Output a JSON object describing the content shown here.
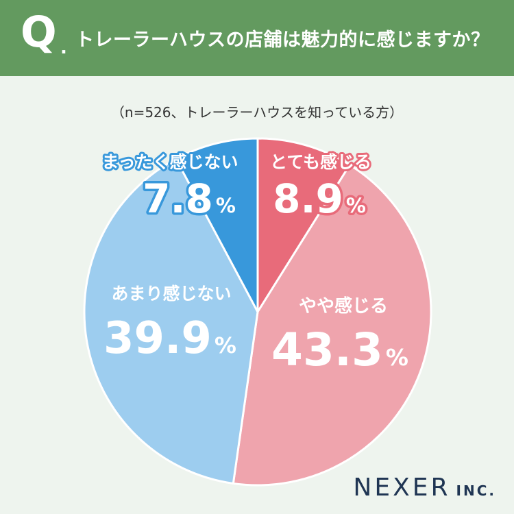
{
  "header": {
    "q_mark": "Q",
    "q_dot": ".",
    "question": "トレーラーハウスの店舗は魅力的に感じますか？",
    "bg_color": "#639a5f"
  },
  "subtitle": "（n=526、トレーラーハウスを知っている方）",
  "chart_data": {
    "type": "pie",
    "start": "12 o'clock",
    "direction": "clockwise",
    "slices": [
      {
        "label": "とても感じる",
        "value": 8.9,
        "display": "8.9",
        "unit": "%",
        "color": "#e86b7a"
      },
      {
        "label": "やや感じる",
        "value": 43.3,
        "display": "43.3",
        "unit": "%",
        "color": "#efa4ad"
      },
      {
        "label": "あまり感じない",
        "value": 39.9,
        "display": "39.9",
        "unit": "%",
        "color": "#9dcdef"
      },
      {
        "label": "まったく感じない",
        "value": 7.8,
        "display": "7.8",
        "unit": "%",
        "color": "#3898db"
      }
    ]
  },
  "logo": {
    "main": "NEXER",
    "sub": "INC."
  }
}
